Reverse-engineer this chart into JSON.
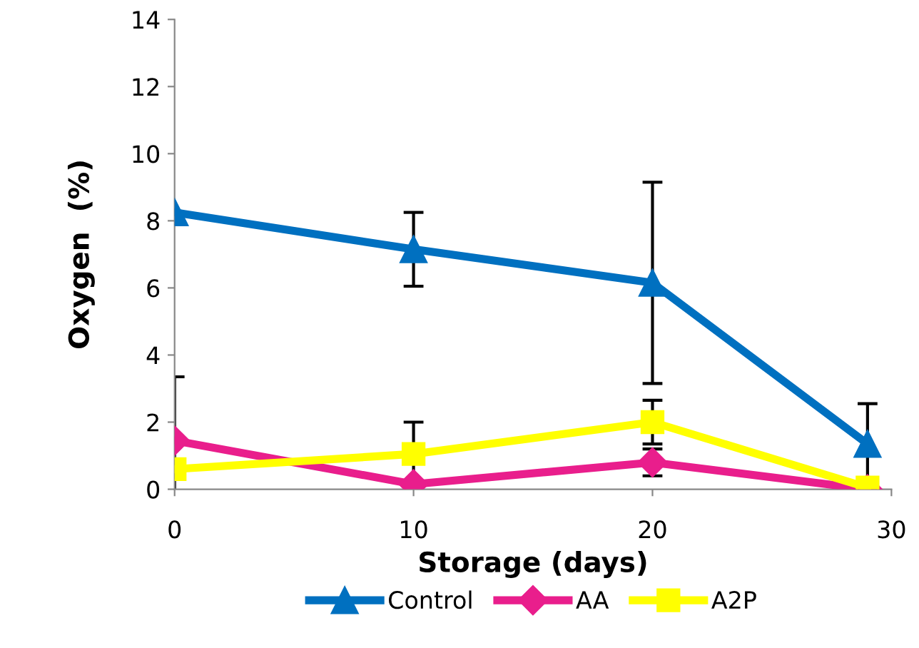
{
  "chart_data": {
    "type": "line",
    "xlabel": "Storage (days)",
    "ylabel": "Oxygen  (%)",
    "x": [
      0,
      10,
      20,
      29
    ],
    "series": [
      {
        "name": "Control",
        "color": "#0070c0",
        "marker": "triangle",
        "values": [
          8.25,
          7.15,
          6.15,
          1.35
        ],
        "errors": [
          null,
          1.1,
          3.0,
          1.2
        ]
      },
      {
        "name": "AA",
        "color": "#e91e8c",
        "marker": "diamond",
        "values": [
          1.45,
          0.15,
          0.8,
          0.0
        ],
        "errors": [
          1.9,
          null,
          0.4,
          null
        ]
      },
      {
        "name": "A2P",
        "color": "#ffff00",
        "marker": "square",
        "values": [
          0.6,
          1.05,
          2.0,
          0.05
        ],
        "errors": [
          null,
          0.95,
          0.65,
          null
        ]
      }
    ],
    "xlim": [
      0,
      30
    ],
    "xticks": [
      0,
      10,
      20,
      30
    ],
    "ylim": [
      0,
      14
    ],
    "yticks": [
      0,
      2,
      4,
      6,
      8,
      10,
      12,
      14
    ],
    "grid": false,
    "legend": "bottom",
    "line_style": "solid"
  }
}
